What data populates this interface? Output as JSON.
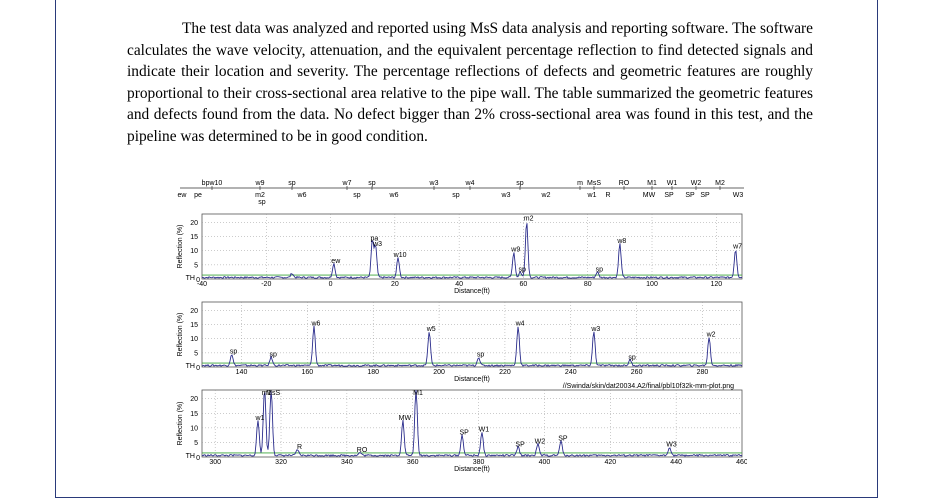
{
  "paragraph": "The test data was analyzed and reported using MsS data analysis and reporting software. The software calculates the wave velocity, attenuation, and the equivalent percentage reflection to find detected signals and indicate their location and severity. The percentage reflections of defects and geometric features are roughly proportional to their cross-sectional area relative to the pipe wall. The table summarized the geometric features and defects found from the data. No defect bigger than 2% cross-sectional area was found in this test, and the pipeline was determined to be in good condition.",
  "figure": {
    "top_labels_row1": [
      "bpw10",
      "w9",
      "sp",
      "w7",
      "sp",
      "w3",
      "w4",
      "sp",
      "m",
      "MsS",
      "RO",
      "M1",
      "W1",
      "W2",
      "M2"
    ],
    "top_labels_row2": [
      "ew",
      "pe",
      "m2",
      "w6",
      "sp",
      "w6",
      "sp",
      "w3",
      "w2",
      "w1",
      "R",
      "MW",
      "SP",
      "SP",
      "SP",
      "W3"
    ],
    "top_label_sp_below": "sp",
    "ylabel": "Reflection (%)",
    "xlabel": "Distance(ft)",
    "th_label": "TH",
    "file_note": "//Swinda/skin/dat20034.A2/final/pbl10f32k-mm-plot.png"
  },
  "chart_data": [
    {
      "type": "line",
      "xlabel": "Distance(ft)",
      "ylabel": "Reflection (%)",
      "xlim": [
        -40,
        128
      ],
      "ylim": [
        0,
        23
      ],
      "xticks": [
        -40,
        -20,
        0,
        20,
        40,
        60,
        80,
        100,
        120
      ],
      "yticks": [
        5,
        10,
        15,
        20
      ],
      "grid": true,
      "peaks": [
        {
          "x": -12,
          "y": 1.5,
          "label": ""
        },
        {
          "x": 1,
          "y": 5,
          "label": "ew"
        },
        {
          "x": 13,
          "y": 13,
          "label": "pa"
        },
        {
          "x": 14,
          "y": 11,
          "label": "w3"
        },
        {
          "x": 21,
          "y": 7,
          "label": "w10"
        },
        {
          "x": 57,
          "y": 9,
          "label": "w9"
        },
        {
          "x": 59,
          "y": 2,
          "label": "sp"
        },
        {
          "x": 61,
          "y": 20,
          "label": "m2"
        },
        {
          "x": 83,
          "y": 2,
          "label": "sp"
        },
        {
          "x": 90,
          "y": 12,
          "label": "w8"
        },
        {
          "x": 126,
          "y": 10,
          "label": "w7"
        }
      ],
      "series": []
    },
    {
      "type": "line",
      "xlabel": "Distance(ft)",
      "ylabel": "Reflection (%)",
      "xlim": [
        128,
        292
      ],
      "ylim": [
        0,
        23
      ],
      "xticks": [
        140,
        160,
        180,
        200,
        220,
        240,
        260,
        280
      ],
      "yticks": [
        5,
        10,
        15,
        20
      ],
      "grid": true,
      "peaks": [
        {
          "x": 137,
          "y": 4,
          "label": "sp"
        },
        {
          "x": 149,
          "y": 3,
          "label": "sp"
        },
        {
          "x": 162,
          "y": 14,
          "label": "w6"
        },
        {
          "x": 197,
          "y": 12,
          "label": "w5"
        },
        {
          "x": 212,
          "y": 3,
          "label": "sp"
        },
        {
          "x": 224,
          "y": 14,
          "label": "w4"
        },
        {
          "x": 247,
          "y": 12,
          "label": "w3"
        },
        {
          "x": 258,
          "y": 2,
          "label": "sp"
        },
        {
          "x": 282,
          "y": 10,
          "label": "w2"
        }
      ],
      "series": []
    },
    {
      "type": "line",
      "xlabel": "Distance(ft)",
      "ylabel": "Reflection (%)",
      "xlim": [
        296,
        460
      ],
      "ylim": [
        0,
        23
      ],
      "xticks": [
        300,
        320,
        340,
        360,
        380,
        400,
        420,
        440,
        460
      ],
      "yticks": [
        5,
        10,
        15,
        20
      ],
      "grid": true,
      "peaks": [
        {
          "x": 313,
          "y": 12,
          "label": "w1"
        },
        {
          "x": 315,
          "y": 24,
          "label": "m1"
        },
        {
          "x": 317,
          "y": 24,
          "label": "MsS"
        },
        {
          "x": 325,
          "y": 2,
          "label": "R"
        },
        {
          "x": 344,
          "y": 1,
          "label": "RO"
        },
        {
          "x": 357,
          "y": 12,
          "label": "MW"
        },
        {
          "x": 361,
          "y": 24,
          "label": "M1"
        },
        {
          "x": 375,
          "y": 7,
          "label": "SP"
        },
        {
          "x": 381,
          "y": 8,
          "label": "W1"
        },
        {
          "x": 392,
          "y": 3,
          "label": "SP"
        },
        {
          "x": 398,
          "y": 4,
          "label": "W2"
        },
        {
          "x": 405,
          "y": 5,
          "label": "SP"
        },
        {
          "x": 438,
          "y": 3,
          "label": "W3"
        }
      ],
      "series": []
    }
  ]
}
